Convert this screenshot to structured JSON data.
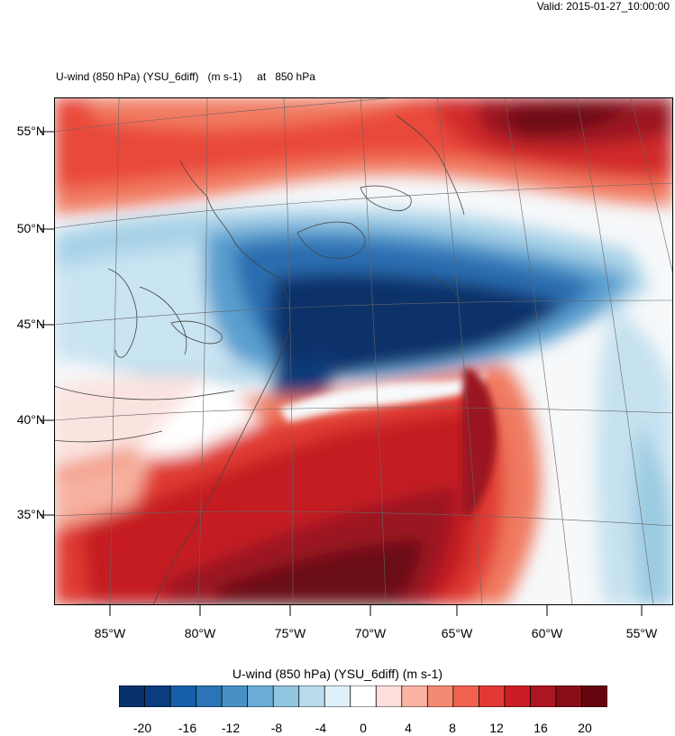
{
  "header": {
    "valid_time": "Valid: 2015-01-27_10:00:00",
    "plot_title": "U-wind (850 hPa) (YSU_6diff)   (m s-1)     at   850 hPa"
  },
  "map": {
    "variable": "U-wind (850 hPa)",
    "units": "m s-1",
    "level": "850 hPa",
    "lat_labels": [
      "55°N",
      "50°N",
      "45°N",
      "40°N",
      "35°N"
    ],
    "lon_labels": [
      "85°W",
      "80°W",
      "75°W",
      "70°W",
      "65°W",
      "60°W",
      "55°W"
    ]
  },
  "colorbar": {
    "title": "U-wind (850 hPa) (YSU_6diff)  (m s-1)",
    "labels": [
      "-20",
      "-16",
      "-12",
      "-8",
      "-4",
      "0",
      "4",
      "8",
      "12",
      "16",
      "20"
    ],
    "colors": [
      "#08306b",
      "#0b3d7e",
      "#1560a8",
      "#2a74b7",
      "#4791c6",
      "#6aaed6",
      "#92c5de",
      "#b8dcec",
      "#def1fb",
      "#ffffff",
      "#fde0dc",
      "#f9b4a5",
      "#f58a73",
      "#f0624f",
      "#e13a33",
      "#cb1d25",
      "#ac1620",
      "#890e1a",
      "#640510"
    ]
  }
}
